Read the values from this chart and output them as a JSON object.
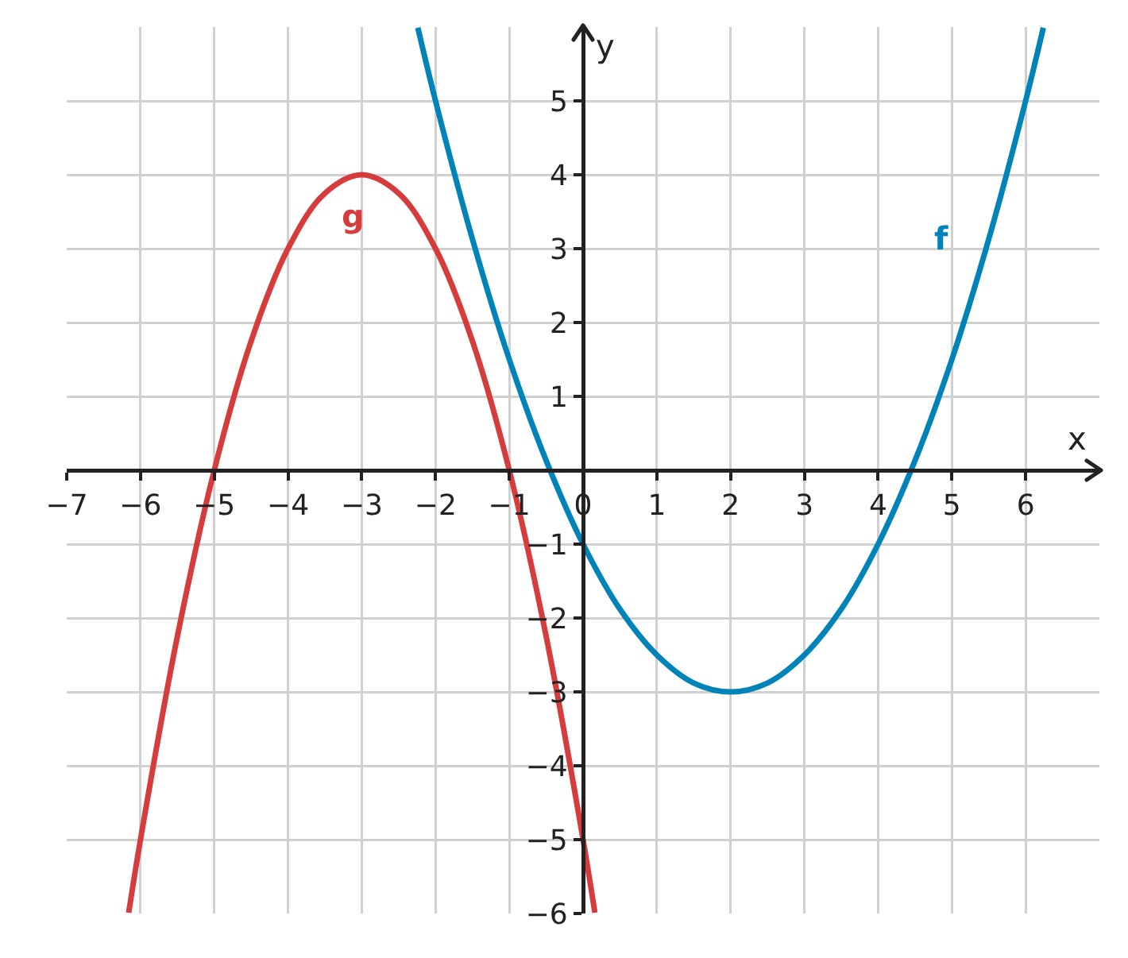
{
  "chart_data": {
    "type": "line",
    "xlabel": "x",
    "ylabel": "y",
    "xlim": [
      -7,
      7
    ],
    "ylim": [
      -6,
      6
    ],
    "xticks": [
      {
        "value": -7,
        "label": "−7"
      },
      {
        "value": -6,
        "label": "−6"
      },
      {
        "value": -5,
        "label": "−5"
      },
      {
        "value": -4,
        "label": "−4"
      },
      {
        "value": -3,
        "label": "−3"
      },
      {
        "value": -2,
        "label": "−2"
      },
      {
        "value": -1,
        "label": "−1"
      },
      0,
      1,
      2,
      3,
      4,
      5,
      6
    ],
    "yticks": [
      {
        "value": -6,
        "label": "−6"
      },
      {
        "value": -5,
        "label": "−5"
      },
      {
        "value": -4,
        "label": "−4"
      },
      {
        "value": -3,
        "label": "−3"
      },
      {
        "value": -2,
        "label": "−2"
      },
      {
        "value": -1,
        "label": "−1"
      },
      1,
      2,
      3,
      4,
      5
    ],
    "grid": true,
    "legend": false,
    "marker": "none",
    "line_style": "solid",
    "series": [
      {
        "name": "f",
        "color": "#0083b8",
        "x": [
          -2.24,
          -2,
          -1.5,
          -1,
          -0.5,
          0,
          0.5,
          1,
          1.5,
          2,
          2.5,
          3,
          3.5,
          4,
          4.5,
          5,
          5.5,
          6,
          6.24
        ],
        "values": [
          5.99,
          5,
          3.13,
          1.5,
          0.13,
          -1,
          -1.88,
          -2.5,
          -2.88,
          -3,
          -2.88,
          -2.5,
          -1.88,
          -1,
          0.13,
          1.5,
          3.13,
          5,
          5.99
        ]
      },
      {
        "name": "g",
        "color": "#d63c3c",
        "x": [
          -6.16,
          -6,
          -5.5,
          -5,
          -4.5,
          -4,
          -3.5,
          -3,
          -2.5,
          -2,
          -1.5,
          -1,
          -0.5,
          0,
          0.16
        ],
        "values": [
          -5.99,
          -5,
          -2.25,
          0,
          1.75,
          3,
          3.75,
          4,
          3.75,
          3,
          1.75,
          0,
          -2.25,
          -5,
          -5.99
        ]
      }
    ]
  }
}
